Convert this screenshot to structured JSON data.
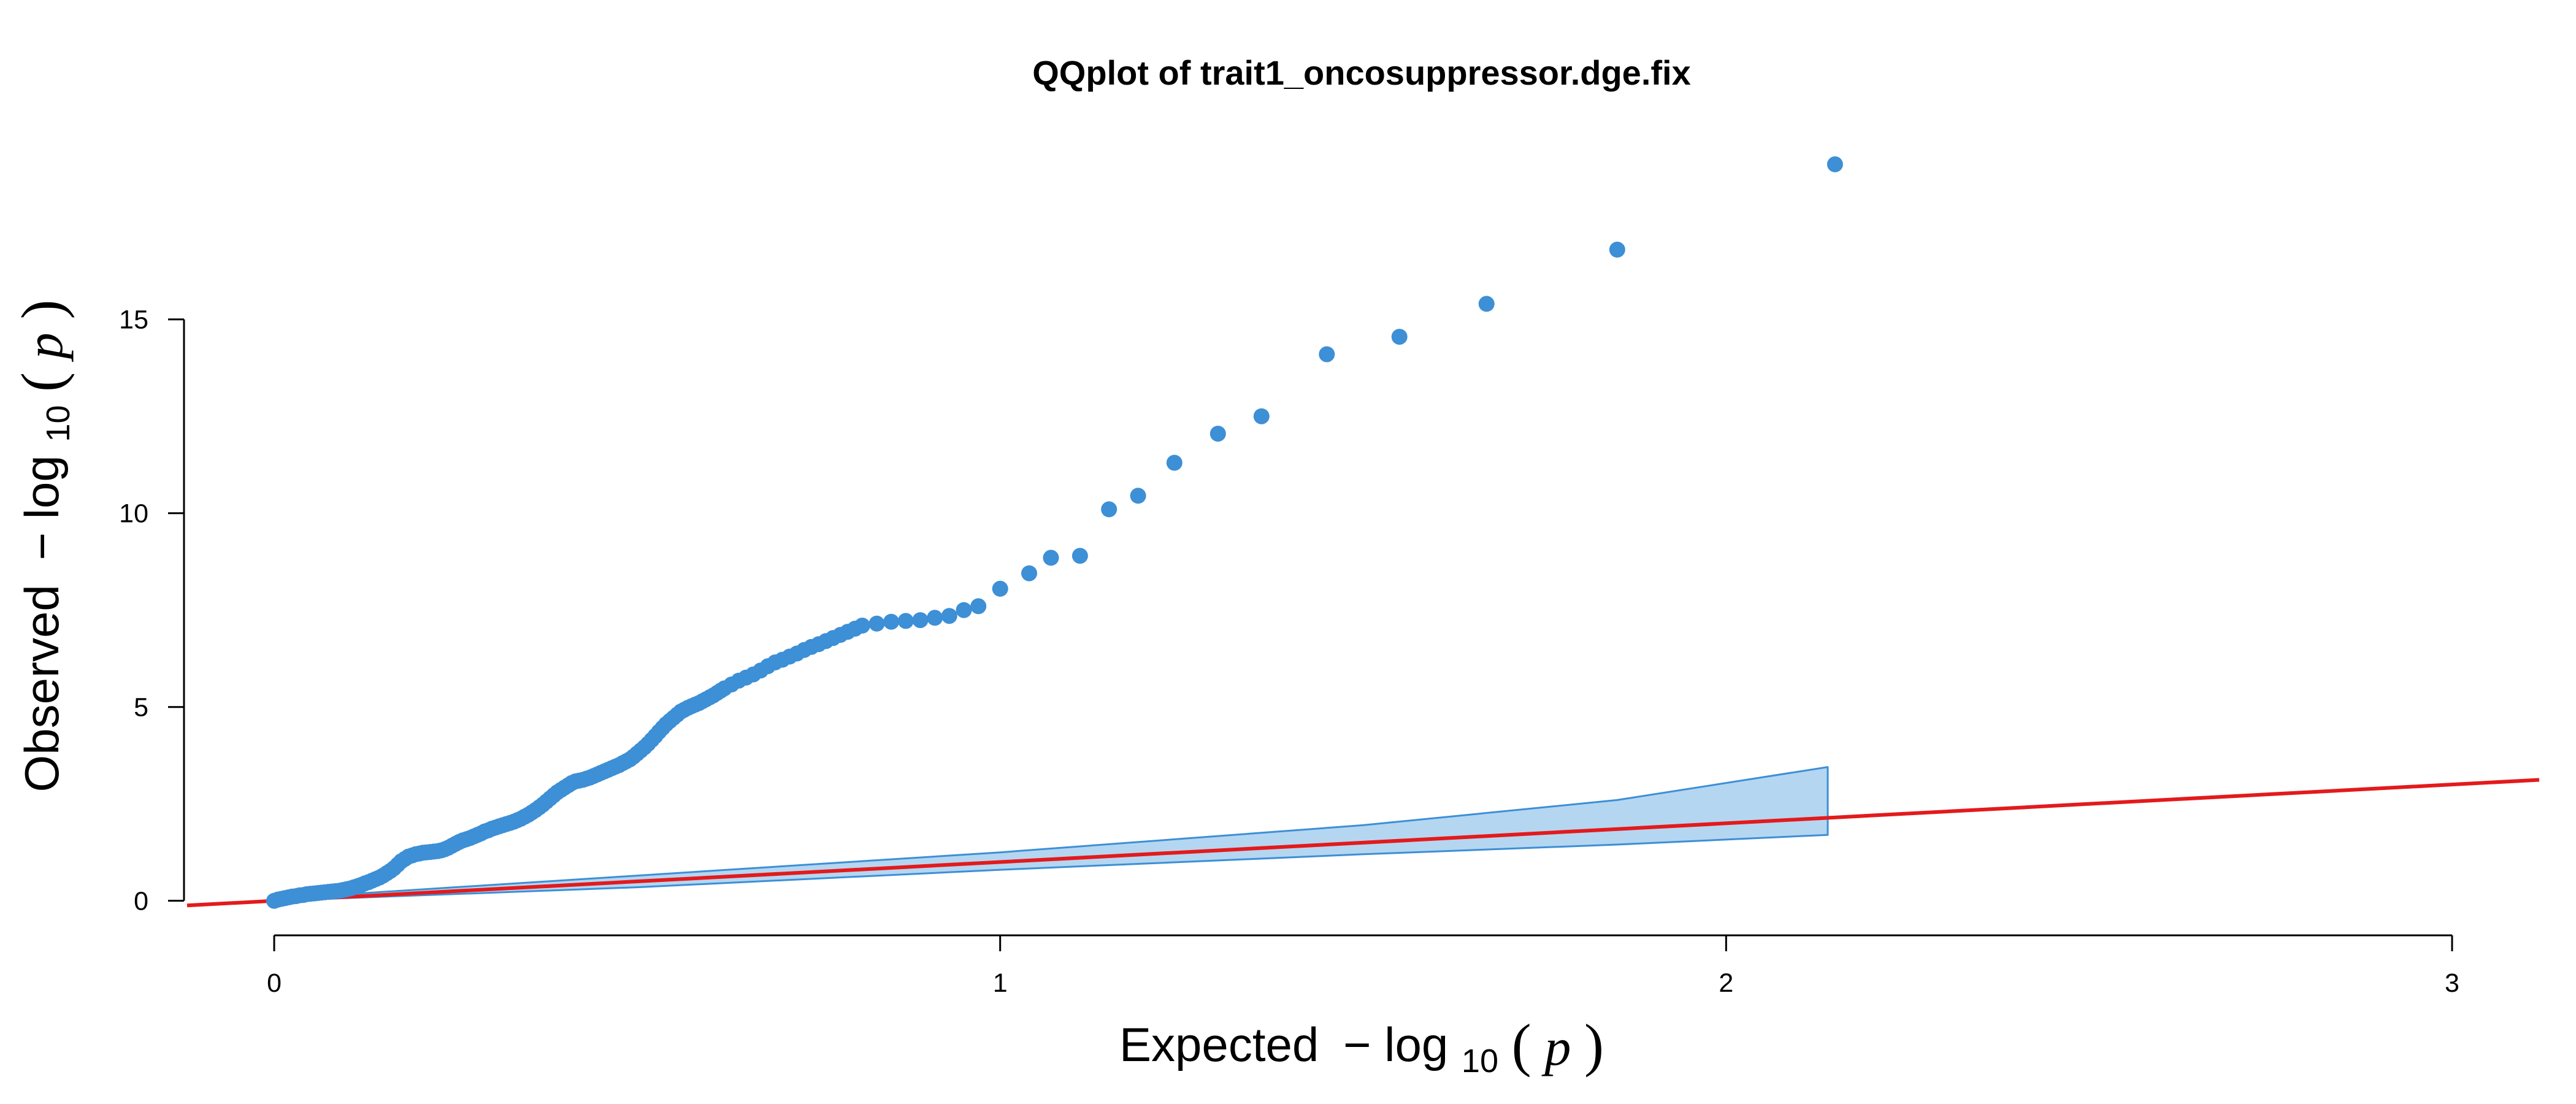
{
  "chart_data": {
    "type": "scatter",
    "title": "QQplot of trait1_oncosuppressor.dge.fix",
    "xlabel": {
      "prefix": "Expected",
      "minus": "−",
      "func": "log",
      "sub": "10",
      "open": "(",
      "var": "p",
      "close": ")"
    },
    "ylabel": {
      "prefix": "Observed",
      "minus": "−",
      "func": "log",
      "sub": "10",
      "open": "(",
      "var": "p",
      "close": ")"
    },
    "xlim": [
      -0.12,
      3.12
    ],
    "ylim": [
      -0.1,
      19.6
    ],
    "x_ticks": [
      0,
      1,
      2,
      3
    ],
    "x_tick_labels": [
      "0",
      "1",
      "2",
      "3"
    ],
    "y_ticks": [
      0,
      5,
      10,
      15
    ],
    "y_tick_labels": [
      "0",
      "5",
      "10",
      "15"
    ],
    "grid": false,
    "legend": "none",
    "colors": {
      "points": "#3d8fd6",
      "band_fill": "#b5d6f1",
      "band_stroke": "#3d8fd6",
      "reference_line": "#e31a1c"
    },
    "reference_line": {
      "slope": 1,
      "intercept": 0
    },
    "confidence_band": {
      "x": [
        0,
        0.5,
        1.0,
        1.5,
        1.85,
        2.14
      ],
      "lower": [
        0,
        0.35,
        0.8,
        1.2,
        1.45,
        1.7
      ],
      "upper": [
        0.05,
        0.65,
        1.25,
        1.95,
        2.6,
        3.45
      ]
    },
    "series": [
      {
        "x": [
          0.0,
          0.005,
          0.01,
          0.015,
          0.02,
          0.025,
          0.03,
          0.035,
          0.04,
          0.045,
          0.05,
          0.055,
          0.06,
          0.065,
          0.07,
          0.075,
          0.08,
          0.085,
          0.09,
          0.095,
          0.1,
          0.105,
          0.11,
          0.115,
          0.12,
          0.125,
          0.13,
          0.135,
          0.14,
          0.145,
          0.15,
          0.155,
          0.16,
          0.165,
          0.17,
          0.175,
          0.18,
          0.185,
          0.19,
          0.195,
          0.2,
          0.205,
          0.21,
          0.215,
          0.22,
          0.225,
          0.23,
          0.235,
          0.24,
          0.245,
          0.25,
          0.255,
          0.26,
          0.265,
          0.27,
          0.275,
          0.28,
          0.285,
          0.29,
          0.295,
          0.3,
          0.305,
          0.31,
          0.315,
          0.32,
          0.325,
          0.33,
          0.335,
          0.34,
          0.345,
          0.35,
          0.355,
          0.36,
          0.365,
          0.37,
          0.375,
          0.38,
          0.385,
          0.39,
          0.395,
          0.4,
          0.405,
          0.41,
          0.415,
          0.42,
          0.425,
          0.43,
          0.435,
          0.44,
          0.445,
          0.45,
          0.455,
          0.46,
          0.465,
          0.47,
          0.475,
          0.48,
          0.485,
          0.49,
          0.495,
          0.5,
          0.505,
          0.51,
          0.515,
          0.52,
          0.525,
          0.53,
          0.535,
          0.54,
          0.545,
          0.55,
          0.555,
          0.56,
          0.565,
          0.57,
          0.575,
          0.58,
          0.585,
          0.59,
          0.595,
          0.6,
          0.605,
          0.61,
          0.615,
          0.62,
          0.63,
          0.64,
          0.65,
          0.66,
          0.67,
          0.68,
          0.69,
          0.7,
          0.71,
          0.72,
          0.73,
          0.74,
          0.75,
          0.76,
          0.77,
          0.78,
          0.79,
          0.8,
          0.81,
          0.83,
          0.85,
          0.87,
          0.89,
          0.91,
          0.93,
          0.95,
          0.97,
          1.0,
          1.04,
          1.07,
          1.11,
          1.15,
          1.19,
          1.24,
          1.3,
          1.36,
          1.45,
          1.55,
          1.67,
          1.85,
          2.15
        ],
        "y": [
          0.0,
          0.03,
          0.05,
          0.07,
          0.09,
          0.11,
          0.12,
          0.14,
          0.15,
          0.17,
          0.18,
          0.19,
          0.2,
          0.21,
          0.22,
          0.23,
          0.24,
          0.25,
          0.26,
          0.28,
          0.3,
          0.32,
          0.35,
          0.38,
          0.41,
          0.45,
          0.48,
          0.52,
          0.56,
          0.6,
          0.65,
          0.71,
          0.77,
          0.84,
          0.93,
          1.02,
          1.08,
          1.14,
          1.17,
          1.2,
          1.22,
          1.24,
          1.25,
          1.26,
          1.27,
          1.28,
          1.3,
          1.33,
          1.37,
          1.42,
          1.47,
          1.52,
          1.56,
          1.59,
          1.62,
          1.66,
          1.7,
          1.74,
          1.79,
          1.82,
          1.86,
          1.89,
          1.92,
          1.95,
          1.98,
          2.01,
          2.04,
          2.08,
          2.12,
          2.17,
          2.22,
          2.28,
          2.34,
          2.41,
          2.48,
          2.56,
          2.64,
          2.72,
          2.8,
          2.86,
          2.92,
          2.98,
          3.04,
          3.08,
          3.1,
          3.12,
          3.15,
          3.18,
          3.22,
          3.26,
          3.3,
          3.34,
          3.38,
          3.42,
          3.46,
          3.5,
          3.55,
          3.6,
          3.65,
          3.72,
          3.8,
          3.88,
          3.96,
          4.05,
          4.15,
          4.25,
          4.36,
          4.46,
          4.56,
          4.64,
          4.72,
          4.8,
          4.88,
          4.93,
          4.98,
          5.02,
          5.06,
          5.1,
          5.15,
          5.2,
          5.25,
          5.3,
          5.36,
          5.42,
          5.48,
          5.58,
          5.68,
          5.76,
          5.84,
          5.94,
          6.05,
          6.15,
          6.22,
          6.3,
          6.38,
          6.47,
          6.55,
          6.62,
          6.7,
          6.78,
          6.86,
          6.94,
          7.02,
          7.1,
          7.15,
          7.2,
          7.22,
          7.24,
          7.3,
          7.35,
          7.5,
          7.6,
          8.05,
          8.45,
          8.85,
          8.9,
          10.1,
          10.45,
          11.3,
          12.05,
          12.5,
          14.1,
          14.55,
          15.4,
          16.8,
          19.0
        ]
      }
    ]
  }
}
